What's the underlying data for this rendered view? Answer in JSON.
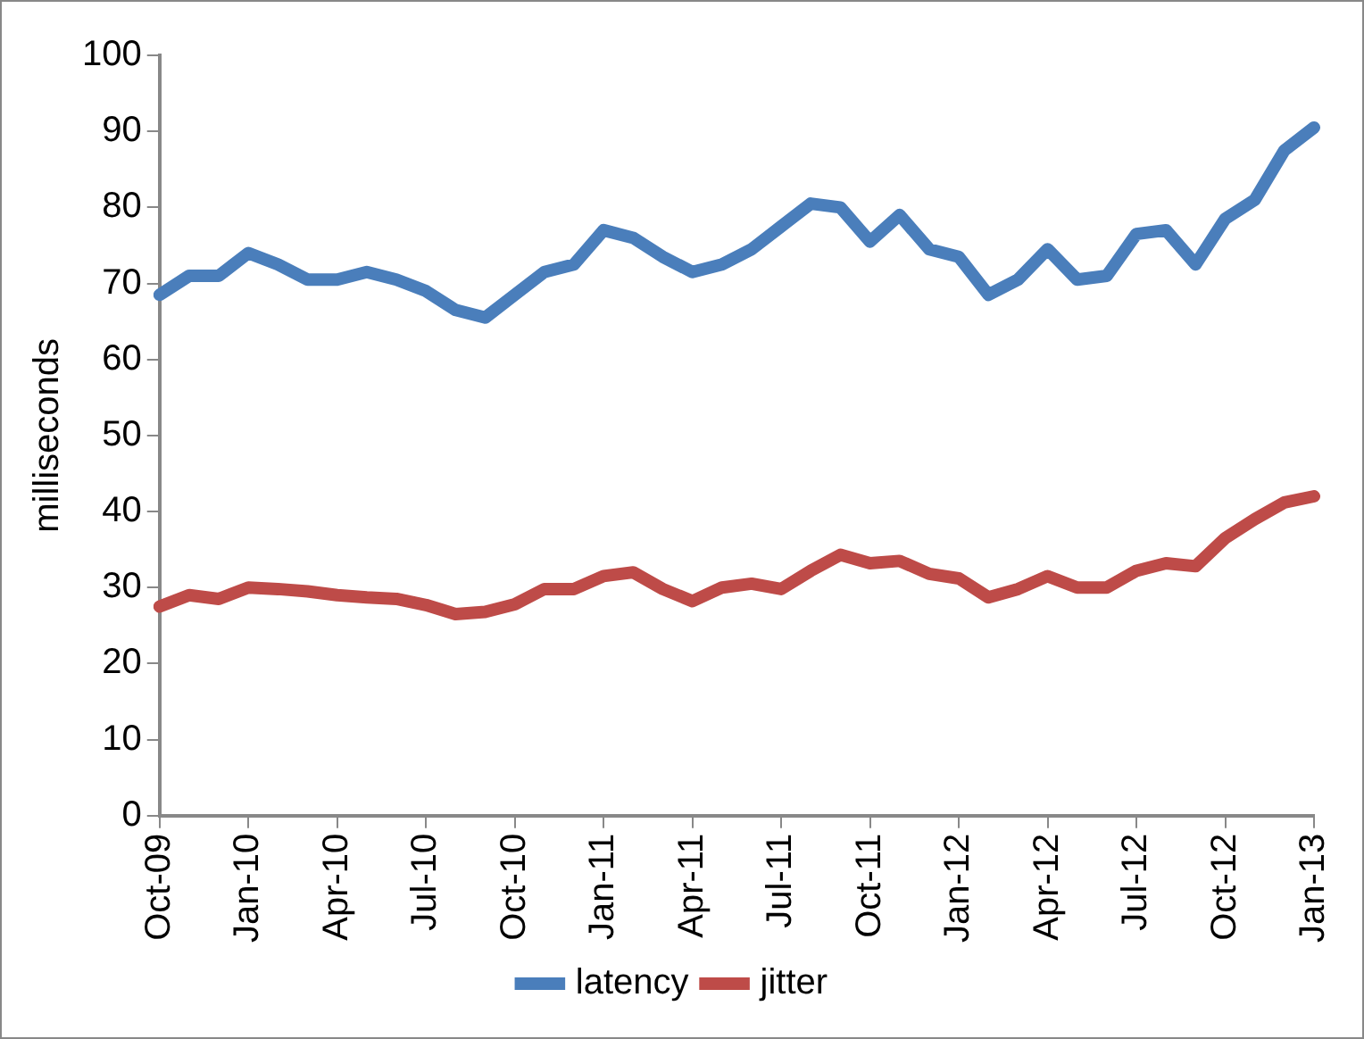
{
  "chart_data": {
    "type": "line",
    "ylabel": "milliseconds",
    "categories": [
      "Oct-09",
      null,
      null,
      "Jan-10",
      null,
      null,
      "Apr-10",
      null,
      null,
      "Jul-10",
      null,
      null,
      "Oct-10",
      null,
      null,
      "Jan-11",
      null,
      null,
      "Apr-11",
      null,
      null,
      "Jul-11",
      null,
      null,
      "Oct-11",
      null,
      null,
      "Jan-12",
      null,
      null,
      "Apr-12",
      null,
      null,
      "Jul-12",
      null,
      null,
      "Oct-12",
      null,
      null,
      "Jan-13"
    ],
    "series": [
      {
        "name": "latency",
        "color": "#4a7ebb",
        "values": [
          68.5,
          71,
          71,
          74,
          72.5,
          70.5,
          70.5,
          71.5,
          70.5,
          69,
          66.5,
          65.5,
          68.5,
          71.5,
          72.5,
          77,
          76,
          73.5,
          71.5,
          72.5,
          74.5,
          77.5,
          80.5,
          80,
          75.5,
          79,
          74.5,
          73.5,
          68.5,
          70.5,
          74.5,
          70.5,
          71,
          76.5,
          77,
          72.5,
          78.5,
          81,
          87.5,
          90.5
        ]
      },
      {
        "name": "jitter",
        "color": "#be4b48",
        "values": [
          27.5,
          29,
          28.5,
          30,
          29.8,
          29.5,
          29,
          28.7,
          28.5,
          27.7,
          26.5,
          26.8,
          27.8,
          29.8,
          29.8,
          31.5,
          32,
          29.8,
          28.2,
          30,
          30.5,
          29.8,
          32.2,
          34.3,
          33.2,
          33.5,
          31.8,
          31.2,
          28.7,
          29.8,
          31.5,
          30,
          30,
          32.2,
          33.2,
          32.8,
          36.5,
          39,
          41.2,
          42
        ]
      }
    ],
    "ylim": [
      0,
      100
    ],
    "yticks": [
      0,
      10,
      20,
      30,
      40,
      50,
      60,
      70,
      80,
      90,
      100
    ],
    "grid": false,
    "legend": "bottom",
    "marker": "none",
    "line_style": "solid"
  }
}
